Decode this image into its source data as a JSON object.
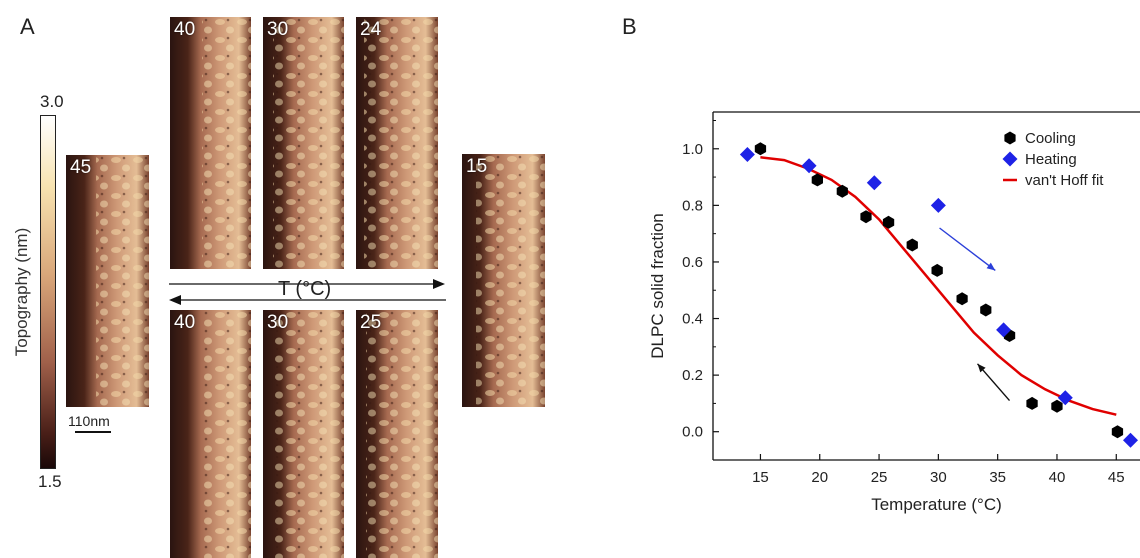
{
  "panels": {
    "a": "A",
    "b": "B"
  },
  "colorbar": {
    "max": "3.0",
    "min": "1.5",
    "label": "Topography (nm)"
  },
  "scale_bar": "110nm",
  "t_axis_label": "T (°C)",
  "afm_images": [
    {
      "id": "45",
      "label": "45"
    },
    {
      "id": "40-top",
      "label": "40"
    },
    {
      "id": "30-top",
      "label": "30"
    },
    {
      "id": "24-top",
      "label": "24"
    },
    {
      "id": "40-bottom",
      "label": "40"
    },
    {
      "id": "30-bottom",
      "label": "30"
    },
    {
      "id": "25-bottom",
      "label": "25"
    },
    {
      "id": "15",
      "label": "15"
    }
  ],
  "chart_data": {
    "type": "scatter",
    "title": "",
    "xlabel": "Temperature (°C)",
    "ylabel": "DLPC solid fraction",
    "xlim": [
      11,
      47
    ],
    "ylim": [
      -0.1,
      1.13
    ],
    "xticks": [
      15,
      20,
      25,
      30,
      35,
      40,
      45
    ],
    "yticks": [
      0.0,
      0.2,
      0.4,
      0.6,
      0.8,
      1.0
    ],
    "xtick_labels": [
      "15",
      "20",
      "25",
      "30",
      "35",
      "40",
      "45"
    ],
    "ytick_labels": [
      "0.0",
      "0.2",
      "0.4",
      "0.6",
      "0.8",
      "1.0"
    ],
    "legend_position": "top-right",
    "series": [
      {
        "name": "Cooling",
        "marker": "hexagon",
        "color": "#000000",
        "x": [
          15.0,
          19.8,
          21.9,
          23.9,
          25.8,
          27.8,
          29.9,
          32.0,
          34.0,
          36.0,
          37.9,
          40.0,
          45.1
        ],
        "y": [
          1.0,
          0.89,
          0.85,
          0.76,
          0.74,
          0.66,
          0.57,
          0.47,
          0.43,
          0.34,
          0.1,
          0.09,
          0.0
        ]
      },
      {
        "name": "Heating",
        "marker": "diamond",
        "color": "#1e22e6",
        "x": [
          13.9,
          19.1,
          24.6,
          30.0,
          35.5,
          40.7,
          46.2
        ],
        "y": [
          0.98,
          0.94,
          0.88,
          0.8,
          0.36,
          0.12,
          -0.03
        ]
      },
      {
        "name": "van't Hoff fit",
        "marker": "line",
        "color": "#e00000",
        "x": [
          15,
          17,
          19,
          21,
          23,
          25,
          27,
          29,
          31,
          33,
          35,
          37,
          39,
          41,
          43,
          45
        ],
        "y": [
          0.97,
          0.96,
          0.93,
          0.89,
          0.83,
          0.75,
          0.65,
          0.55,
          0.45,
          0.35,
          0.27,
          0.2,
          0.15,
          0.11,
          0.08,
          0.06
        ]
      }
    ],
    "arrows": [
      {
        "direction": "heating",
        "color": "#2b3fd9"
      },
      {
        "direction": "cooling",
        "color": "#111111"
      }
    ]
  }
}
